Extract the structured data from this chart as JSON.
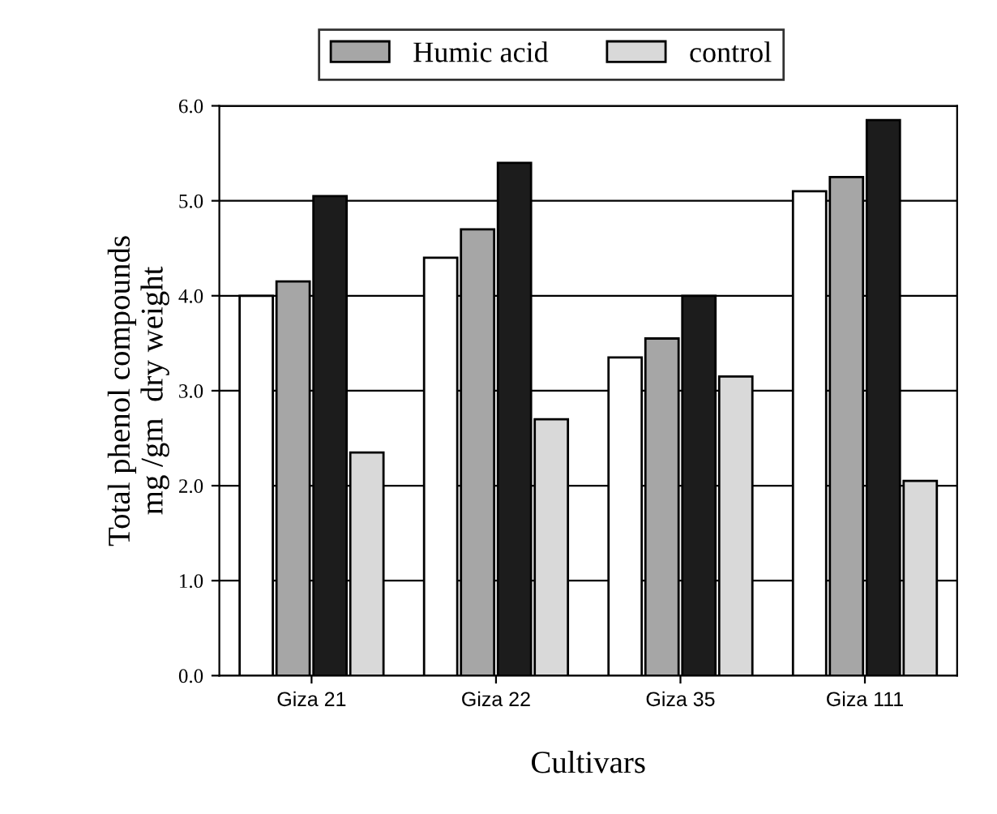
{
  "chart_data": {
    "type": "bar",
    "xlabel": "Cultivars",
    "ylabel": "Total phenol compounds\nmg /gm  dry weight",
    "categories": [
      "Giza 21",
      "Giza 22",
      "Giza 35",
      "Giza 111"
    ],
    "series": [
      {
        "color": "#ffffff",
        "values": [
          4.0,
          4.4,
          3.35,
          5.1
        ]
      },
      {
        "name": "Humic acid",
        "color": "#a6a6a6",
        "values": [
          4.15,
          4.7,
          3.55,
          5.25
        ]
      },
      {
        "color": "#1c1c1c",
        "values": [
          5.05,
          5.4,
          4.0,
          5.85
        ]
      },
      {
        "name": "control",
        "color": "#d9d9d9",
        "values": [
          2.35,
          2.7,
          3.15,
          2.05
        ]
      }
    ],
    "ylim": [
      0,
      6
    ],
    "yticks": [
      {
        "value": 0,
        "label": "0.0"
      },
      {
        "value": 1,
        "label": "1.0"
      },
      {
        "value": 2,
        "label": "2.0"
      },
      {
        "value": 3,
        "label": "3.0"
      },
      {
        "value": 4,
        "label": "4.0"
      },
      {
        "value": 5,
        "label": "5.0"
      },
      {
        "value": 6,
        "label": "6.0"
      }
    ],
    "grid": "y",
    "legend": "top"
  }
}
